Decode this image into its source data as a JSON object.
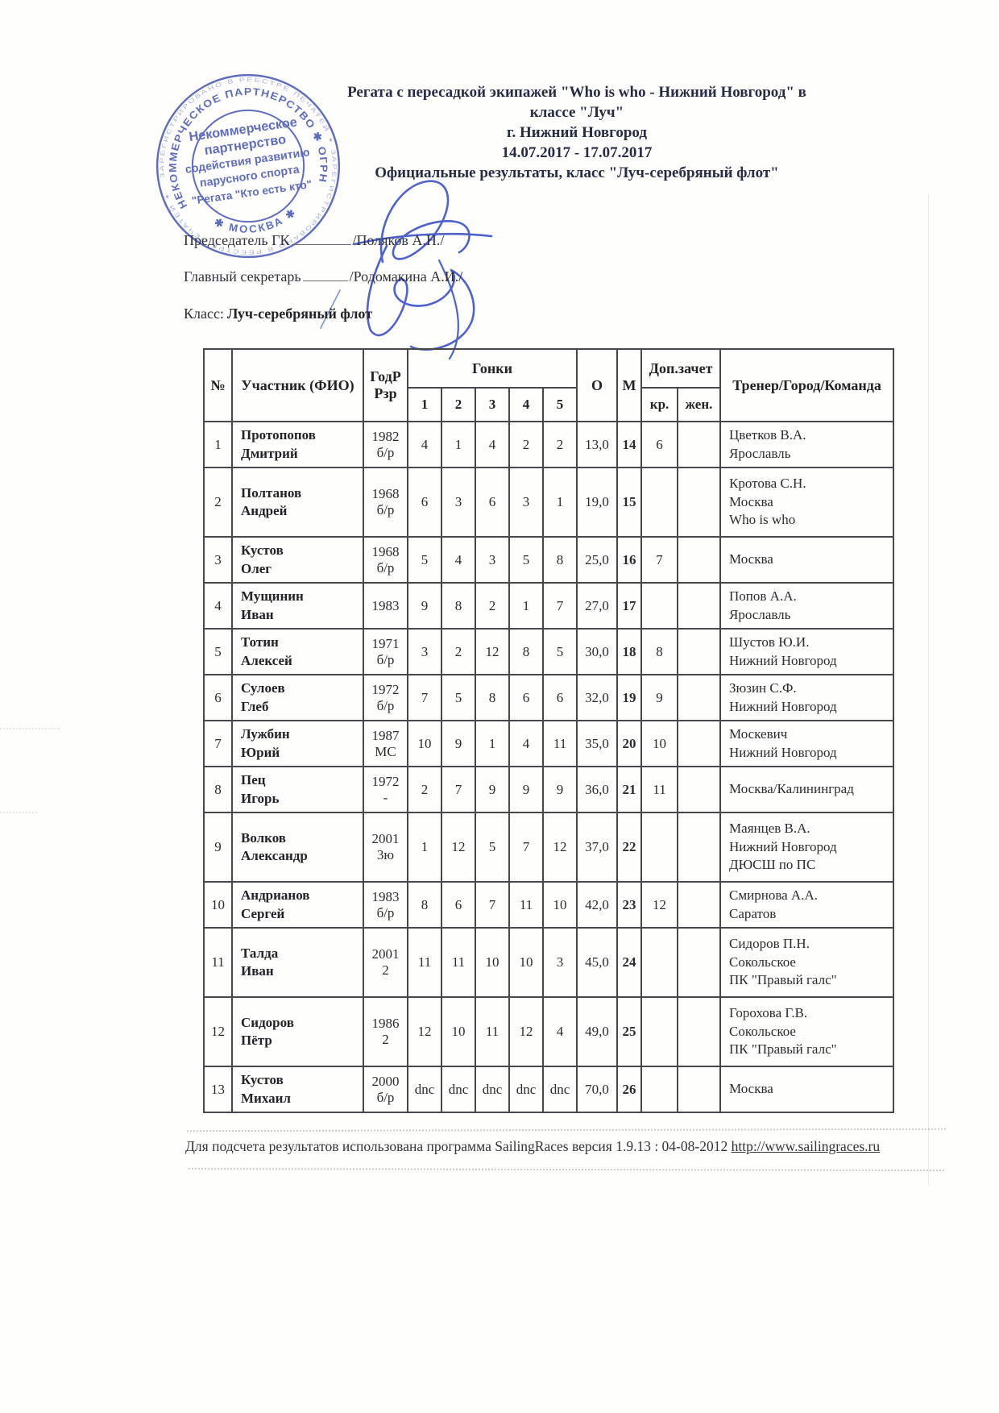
{
  "header": {
    "title_lines": [
      "Регата с пересадкой экипажей \"Who is who - Нижний Новгород\" в",
      "классе \"Луч\"",
      "г. Нижний Новгород",
      "14.07.2017 - 17.07.2017",
      "Официальные результаты, класс \"Луч-серебряный флот\""
    ],
    "chairman_label": "Председатель ГК",
    "chairman_name": "/Поляков А.Н./",
    "secretary_label": "Главный секретарь",
    "secretary_name": "/Родомакина А.И./",
    "class_label": "Класс:",
    "class_value": "Луч-серебряный флот"
  },
  "stamp": {
    "color": "#4454b4",
    "outer_ring_text": "ЗАРЕГИСТРИРОВАНО В РЕЕСТРЕ ПЕЧАТЕЙ ✦ ЗАРЕГИСТРИРОВАНО В РЕЕСТРЕ ПЕЧАТЕЙ ✦",
    "ring_text": "НЕКОММЕРЧЕСКОЕ  ПАРТНЕРСТВО  ✱  ОГРН 1057749669",
    "city": "✱ МОСКВА ✱",
    "center_lines": [
      "Некоммерческое",
      "партнерство",
      "содействия развитию",
      "парусного спорта",
      "\"Регата \"Кто есть кто\""
    ]
  },
  "table": {
    "headers": {
      "num": "№",
      "participant": "Участник (ФИО)",
      "year_rank_lines": [
        "ГодР",
        "Рзр"
      ],
      "races_label": "Гонки",
      "race_numbers": [
        "1",
        "2",
        "3",
        "4",
        "5"
      ],
      "o": "О",
      "m": "М",
      "extra": "Доп.зачет",
      "extra_sub": [
        "кр.",
        "жен."
      ],
      "trainer": "Тренер/Город/Команда"
    },
    "rows": [
      {
        "n": "1",
        "name": [
          "Протопопов",
          "Дмитрий"
        ],
        "year": "1982",
        "rank": "б/р",
        "races": [
          "4",
          "1",
          "4",
          "2",
          "2"
        ],
        "o": "13,0",
        "m": "14",
        "kr": "6",
        "zhen": "",
        "trainer": [
          "Цветков В.А.",
          "Ярославль"
        ]
      },
      {
        "n": "2",
        "name": [
          "Полтанов",
          "Андрей"
        ],
        "year": "1968",
        "rank": "б/р",
        "races": [
          "6",
          "3",
          "6",
          "3",
          "1"
        ],
        "o": "19,0",
        "m": "15",
        "kr": "",
        "zhen": "",
        "trainer": [
          "Кротова С.Н.",
          "Москва",
          "Who is who"
        ]
      },
      {
        "n": "3",
        "name": [
          "Кустов",
          "Олег"
        ],
        "year": "1968",
        "rank": "б/р",
        "races": [
          "5",
          "4",
          "3",
          "5",
          "8"
        ],
        "o": "25,0",
        "m": "16",
        "kr": "7",
        "zhen": "",
        "trainer": [
          "Москва"
        ]
      },
      {
        "n": "4",
        "name": [
          "Мущинин",
          "Иван"
        ],
        "year": "1983",
        "rank": "",
        "races": [
          "9",
          "8",
          "2",
          "1",
          "7"
        ],
        "o": "27,0",
        "m": "17",
        "kr": "",
        "zhen": "",
        "trainer": [
          "Попов А.А.",
          "Ярославль"
        ]
      },
      {
        "n": "5",
        "name": [
          "Тотин",
          "Алексей"
        ],
        "year": "1971",
        "rank": "б/р",
        "races": [
          "3",
          "2",
          "12",
          "8",
          "5"
        ],
        "o": "30,0",
        "m": "18",
        "kr": "8",
        "zhen": "",
        "trainer": [
          "Шустов Ю.И.",
          "Нижний Новгород"
        ]
      },
      {
        "n": "6",
        "name": [
          "Сулоев",
          "Глеб"
        ],
        "year": "1972",
        "rank": "б/р",
        "races": [
          "7",
          "5",
          "8",
          "6",
          "6"
        ],
        "o": "32,0",
        "m": "19",
        "kr": "9",
        "zhen": "",
        "trainer": [
          "Зюзин С.Ф.",
          "Нижний Новгород"
        ]
      },
      {
        "n": "7",
        "name": [
          "Лужбин",
          "Юрий"
        ],
        "year": "1987",
        "rank": "МС",
        "races": [
          "10",
          "9",
          "1",
          "4",
          "11"
        ],
        "o": "35,0",
        "m": "20",
        "kr": "10",
        "zhen": "",
        "trainer": [
          "Москевич",
          "Нижний Новгород"
        ]
      },
      {
        "n": "8",
        "name": [
          "Пец",
          "Игорь"
        ],
        "year": "1972",
        "rank": "-",
        "races": [
          "2",
          "7",
          "9",
          "9",
          "9"
        ],
        "o": "36,0",
        "m": "21",
        "kr": "11",
        "zhen": "",
        "trainer": [
          "Москва/Калининград"
        ]
      },
      {
        "n": "9",
        "name": [
          "Волков",
          "Александр"
        ],
        "year": "2001",
        "rank": "3ю",
        "races": [
          "1",
          "12",
          "5",
          "7",
          "12"
        ],
        "o": "37,0",
        "m": "22",
        "kr": "",
        "zhen": "",
        "trainer": [
          "Маянцев В.А.",
          "Нижний Новгород",
          "ДЮСШ по ПС"
        ]
      },
      {
        "n": "10",
        "name": [
          "Андрианов",
          "Сергей"
        ],
        "year": "1983",
        "rank": "б/р",
        "races": [
          "8",
          "6",
          "7",
          "11",
          "10"
        ],
        "o": "42,0",
        "m": "23",
        "kr": "12",
        "zhen": "",
        "trainer": [
          "Смирнова А.А.",
          "Саратов"
        ]
      },
      {
        "n": "11",
        "name": [
          "Талда",
          "Иван"
        ],
        "year": "2001",
        "rank": "2",
        "races": [
          "11",
          "11",
          "10",
          "10",
          "3"
        ],
        "o": "45,0",
        "m": "24",
        "kr": "",
        "zhen": "",
        "trainer": [
          "Сидоров П.Н.",
          "Сокольское",
          "ПК \"Правый галс\""
        ]
      },
      {
        "n": "12",
        "name": [
          "Сидоров",
          "Пётр"
        ],
        "year": "1986",
        "rank": "2",
        "races": [
          "12",
          "10",
          "11",
          "12",
          "4"
        ],
        "o": "49,0",
        "m": "25",
        "kr": "",
        "zhen": "",
        "trainer": [
          "Горохова Г.В.",
          "Сокольское",
          "ПК \"Правый галс\""
        ]
      },
      {
        "n": "13",
        "name": [
          "Кустов",
          "Михаил"
        ],
        "year": "2000",
        "rank": "б/р",
        "races": [
          "dnc",
          "dnc",
          "dnc",
          "dnc",
          "dnc"
        ],
        "o": "70,0",
        "m": "26",
        "kr": "",
        "zhen": "",
        "trainer": [
          "Москва"
        ]
      }
    ]
  },
  "footer": {
    "text": "Для подсчета результатов использована программа SailingRaces версия 1.9.13 : 04-08-2012",
    "link": "http://www.sailingraces.ru"
  },
  "colors": {
    "stamp_blue": "#4454b4",
    "signature_blue": "#3c52c8"
  }
}
